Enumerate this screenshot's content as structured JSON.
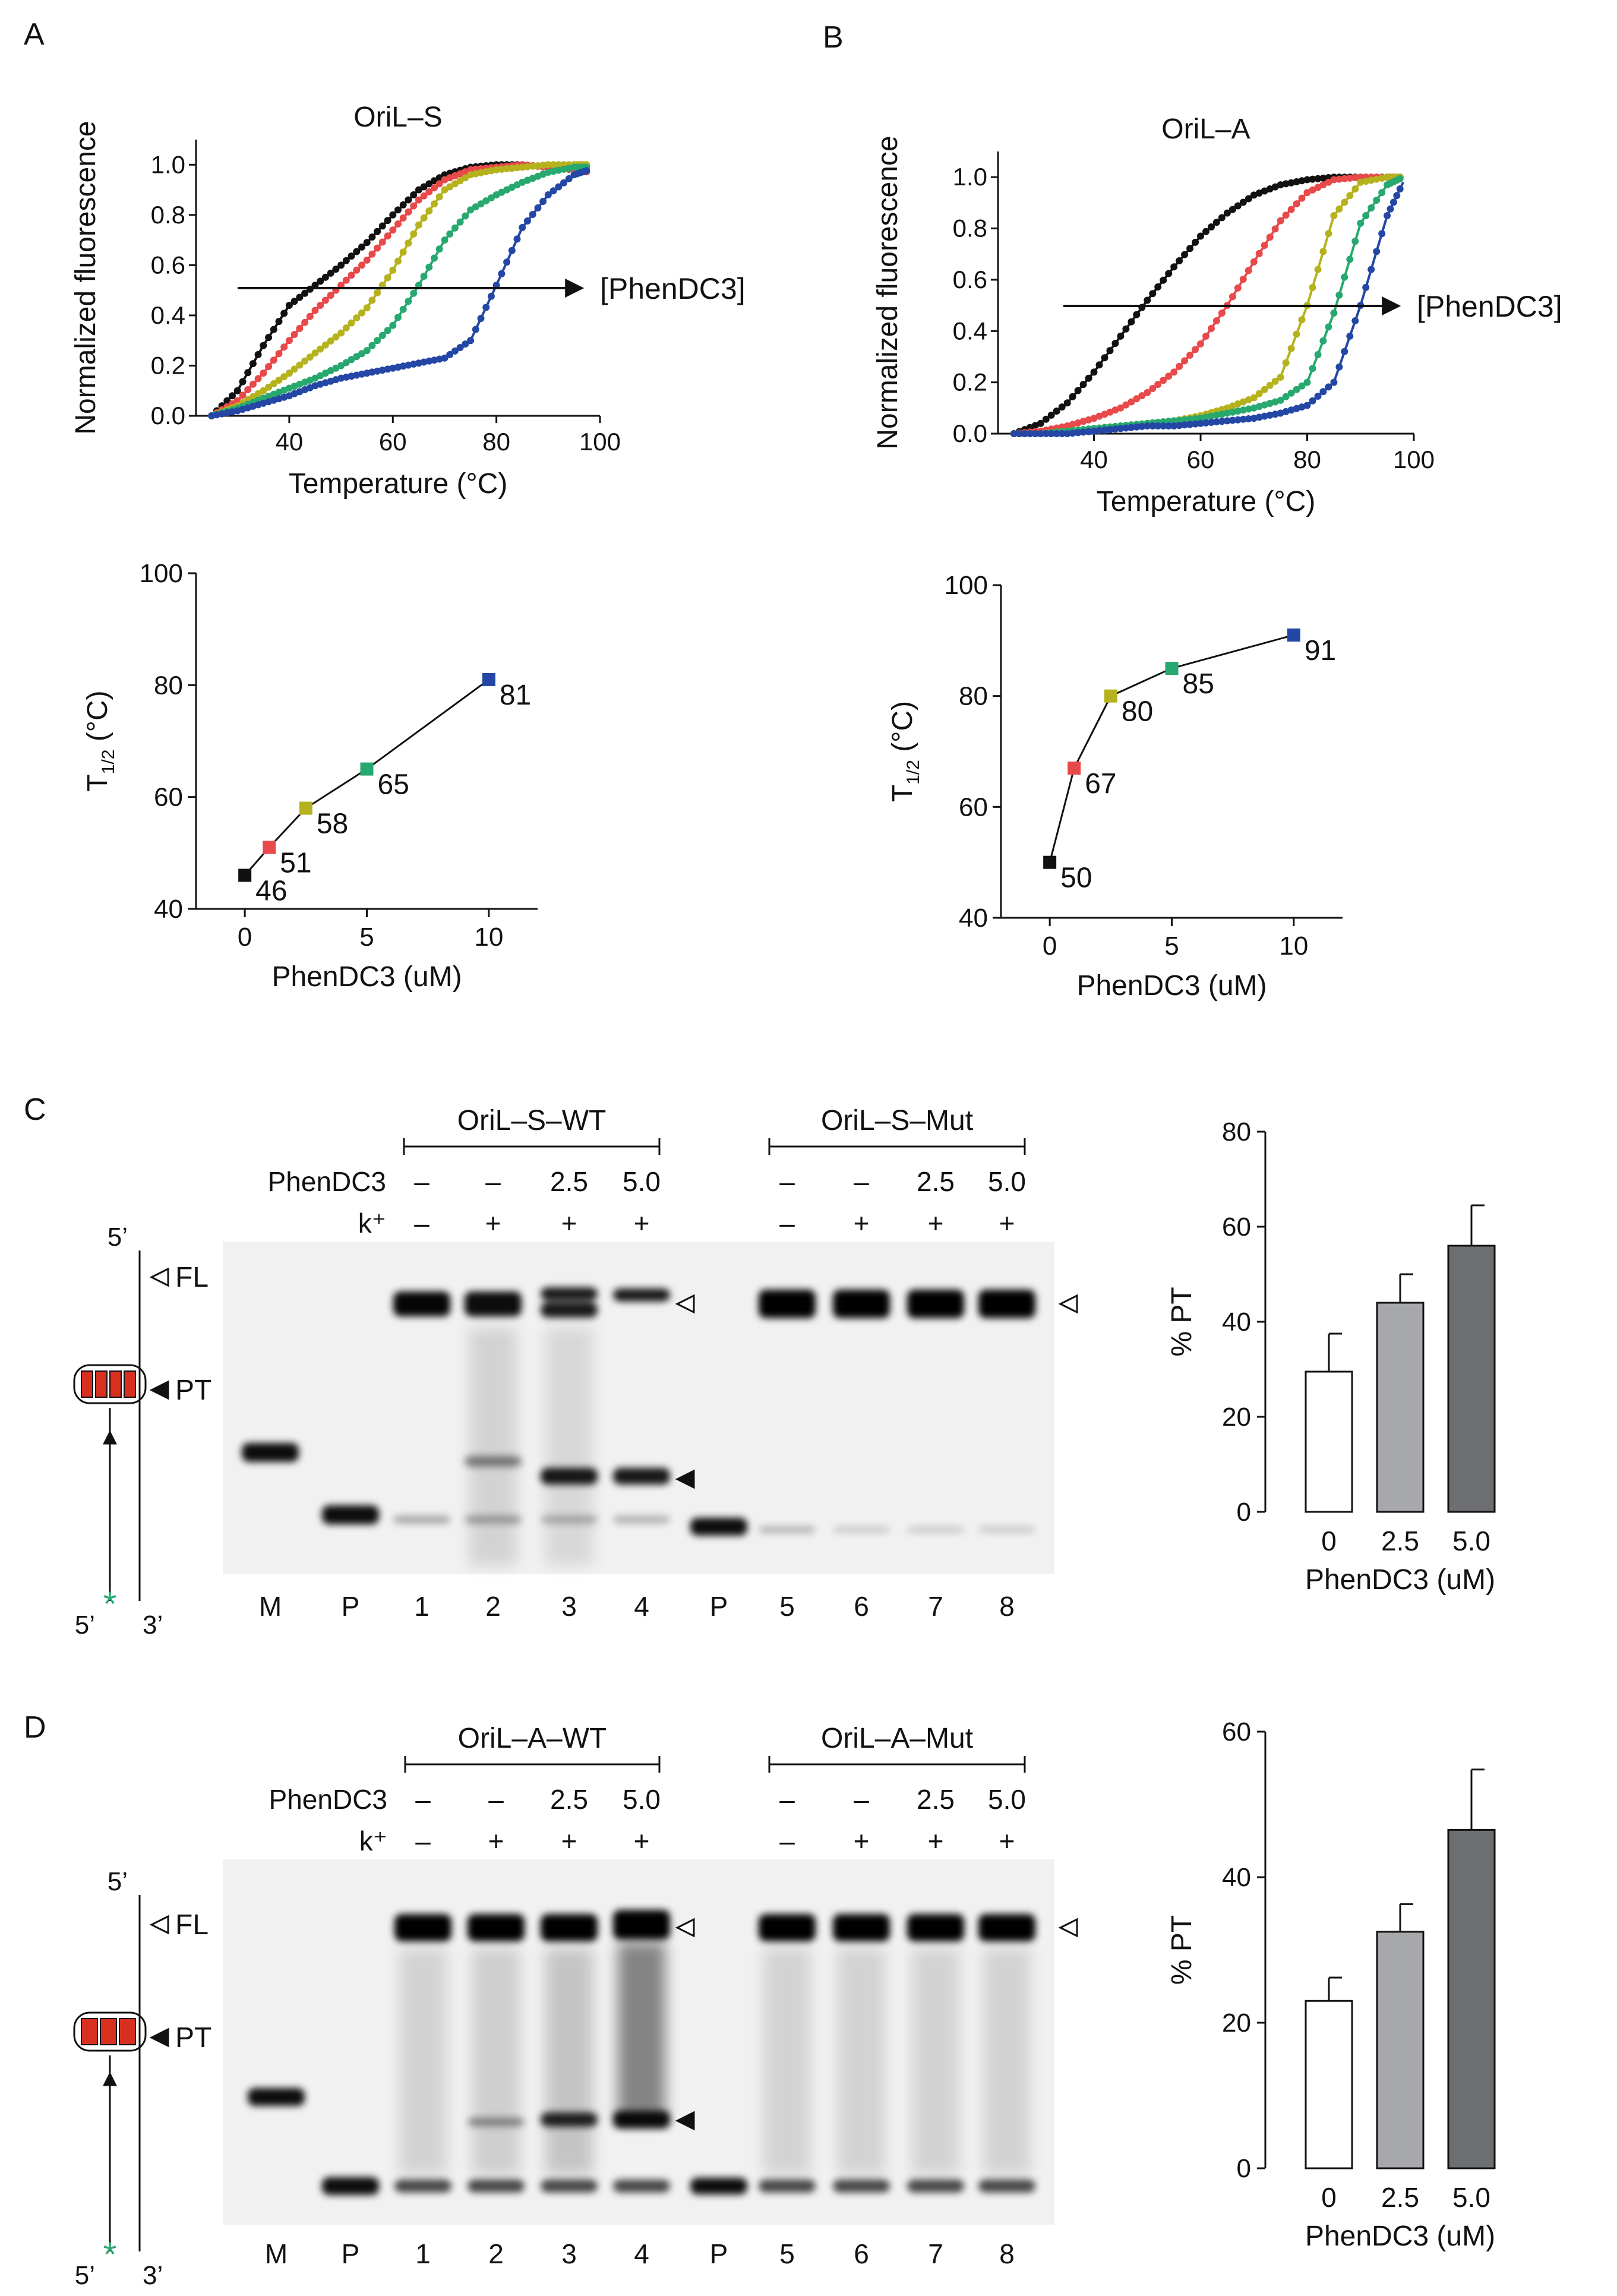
{
  "panel_labels": [
    "A",
    "B",
    "C",
    "D"
  ],
  "colors": {
    "black": "#111111",
    "red": "#e8494a",
    "yellow": "#b5b21e",
    "green": "#27a86f",
    "blue": "#2447a6",
    "bar_0": "#ffffff",
    "bar_2_5": "#a7a8ab",
    "bar_5_0": "#6d6e71"
  },
  "melt_arrow_label": "[PhenDC3]",
  "chart_data": [
    {
      "id": "A-melt",
      "type": "line",
      "title": "OriL–S",
      "xlabel": "Temperature (°C)",
      "ylabel": "Normalized fluorescence",
      "xlim": [
        22,
        100
      ],
      "ylim": [
        0,
        1.1
      ],
      "xticks": [
        40,
        60,
        80,
        100
      ],
      "yticks": [
        0.0,
        0.2,
        0.4,
        0.6,
        0.8,
        1.0
      ],
      "ytick_labels": [
        "0.0",
        "0.2",
        "0.4",
        "0.6",
        "0.8",
        "1.0"
      ],
      "series": [
        {
          "color": "black",
          "x": [
            25,
            30,
            35,
            40,
            45,
            50,
            55,
            60,
            65,
            70,
            75,
            80,
            85,
            90,
            95,
            98
          ],
          "y": [
            0.0,
            0.1,
            0.28,
            0.44,
            0.52,
            0.6,
            0.69,
            0.8,
            0.9,
            0.96,
            0.99,
            1.0,
            1.0,
            0.99,
            0.98,
            0.97
          ]
        },
        {
          "color": "red",
          "x": [
            25,
            30,
            35,
            40,
            45,
            50,
            55,
            60,
            65,
            70,
            75,
            80,
            85,
            90,
            95,
            98
          ],
          "y": [
            0.0,
            0.06,
            0.17,
            0.3,
            0.42,
            0.52,
            0.62,
            0.74,
            0.86,
            0.94,
            0.98,
            0.99,
            1.0,
            0.99,
            0.98,
            0.97
          ]
        },
        {
          "color": "yellow",
          "x": [
            25,
            30,
            35,
            40,
            45,
            50,
            55,
            60,
            65,
            70,
            75,
            80,
            85,
            90,
            95,
            98
          ],
          "y": [
            0.0,
            0.04,
            0.1,
            0.17,
            0.25,
            0.33,
            0.43,
            0.58,
            0.76,
            0.9,
            0.96,
            0.98,
            0.99,
            1.0,
            1.0,
            1.0
          ]
        },
        {
          "color": "green",
          "x": [
            25,
            30,
            35,
            40,
            45,
            50,
            55,
            60,
            65,
            70,
            75,
            80,
            85,
            90,
            95,
            98
          ],
          "y": [
            0.0,
            0.03,
            0.07,
            0.11,
            0.15,
            0.2,
            0.26,
            0.36,
            0.52,
            0.7,
            0.82,
            0.88,
            0.93,
            0.97,
            0.99,
            0.99
          ]
        },
        {
          "color": "blue",
          "x": [
            25,
            30,
            35,
            40,
            45,
            50,
            55,
            60,
            65,
            70,
            75,
            80,
            85,
            90,
            95,
            98
          ],
          "y": [
            0.0,
            0.02,
            0.05,
            0.08,
            0.12,
            0.15,
            0.17,
            0.19,
            0.21,
            0.23,
            0.3,
            0.52,
            0.75,
            0.88,
            0.96,
            0.98
          ]
        }
      ]
    },
    {
      "id": "B-melt",
      "type": "line",
      "title": "OriL–A",
      "xlabel": "Temperature (°C)",
      "ylabel": "Normalized fluorescence",
      "xlim": [
        22,
        100
      ],
      "ylim": [
        0,
        1.1
      ],
      "xticks": [
        40,
        60,
        80,
        100
      ],
      "yticks": [
        0.0,
        0.2,
        0.4,
        0.6,
        0.8,
        1.0
      ],
      "ytick_labels": [
        "0.0",
        "0.2",
        "0.4",
        "0.6",
        "0.8",
        "1.0"
      ],
      "series": [
        {
          "color": "black",
          "x": [
            25,
            30,
            35,
            40,
            45,
            50,
            55,
            60,
            65,
            70,
            75,
            80,
            85,
            90,
            95,
            98
          ],
          "y": [
            0.0,
            0.04,
            0.12,
            0.24,
            0.38,
            0.52,
            0.65,
            0.77,
            0.86,
            0.93,
            0.97,
            0.99,
            1.0,
            1.0,
            1.0,
            1.0
          ]
        },
        {
          "color": "red",
          "x": [
            25,
            30,
            35,
            40,
            45,
            50,
            55,
            60,
            65,
            70,
            75,
            80,
            85,
            90,
            95,
            98
          ],
          "y": [
            0.0,
            0.01,
            0.03,
            0.06,
            0.1,
            0.16,
            0.24,
            0.35,
            0.5,
            0.67,
            0.83,
            0.94,
            0.99,
            1.0,
            1.0,
            1.0
          ]
        },
        {
          "color": "yellow",
          "x": [
            25,
            30,
            35,
            40,
            45,
            50,
            55,
            60,
            65,
            70,
            75,
            80,
            85,
            90,
            95,
            98
          ],
          "y": [
            0.0,
            0.0,
            0.01,
            0.02,
            0.03,
            0.04,
            0.05,
            0.07,
            0.1,
            0.14,
            0.22,
            0.5,
            0.85,
            0.98,
            1.0,
            1.0
          ]
        },
        {
          "color": "green",
          "x": [
            25,
            30,
            35,
            40,
            45,
            50,
            55,
            60,
            65,
            70,
            75,
            80,
            85,
            90,
            95,
            98
          ],
          "y": [
            0.0,
            0.0,
            0.01,
            0.02,
            0.03,
            0.04,
            0.05,
            0.06,
            0.08,
            0.1,
            0.13,
            0.2,
            0.47,
            0.82,
            0.97,
            1.0
          ]
        },
        {
          "color": "blue",
          "x": [
            25,
            30,
            35,
            40,
            45,
            50,
            55,
            60,
            65,
            70,
            75,
            80,
            85,
            90,
            95,
            98
          ],
          "y": [
            0.0,
            0.0,
            0.0,
            0.01,
            0.02,
            0.03,
            0.03,
            0.04,
            0.05,
            0.06,
            0.08,
            0.11,
            0.2,
            0.5,
            0.85,
            0.98
          ]
        }
      ]
    },
    {
      "id": "A-thalf",
      "type": "line",
      "title": "",
      "xlabel": "PhenDC3 (uM)",
      "ylabel": "T",
      "ylabel_sub": "1/2",
      "ylabel_unit": " (°C)",
      "xlim": [
        -2,
        12
      ],
      "ylim": [
        40,
        100
      ],
      "xticks": [
        0,
        5,
        10
      ],
      "yticks": [
        40,
        60,
        80,
        100
      ],
      "x": [
        0,
        1,
        2.5,
        5,
        10
      ],
      "y": [
        46,
        51,
        58,
        65,
        81
      ],
      "point_colors": [
        "black",
        "red",
        "yellow",
        "green",
        "blue"
      ],
      "labels": [
        "46",
        "51",
        "58",
        "65",
        "81"
      ]
    },
    {
      "id": "B-thalf",
      "type": "line",
      "title": "",
      "xlabel": "PhenDC3 (uM)",
      "ylabel": "T",
      "ylabel_sub": "1/2",
      "ylabel_unit": " (°C)",
      "xlim": [
        -2,
        12
      ],
      "ylim": [
        40,
        100
      ],
      "xticks": [
        0,
        5,
        10
      ],
      "yticks": [
        40,
        60,
        80,
        100
      ],
      "x": [
        0,
        1,
        2.5,
        5,
        10
      ],
      "y": [
        50,
        67,
        80,
        85,
        91
      ],
      "point_colors": [
        "black",
        "red",
        "yellow",
        "green",
        "blue"
      ],
      "labels": [
        "50",
        "67",
        "80",
        "85",
        "91"
      ]
    },
    {
      "id": "C-bar",
      "type": "bar",
      "title": "",
      "xlabel": "PhenDC3 (uM)",
      "ylabel": "% PT",
      "categories": [
        "0",
        "2.5",
        "5.0"
      ],
      "values": [
        29.5,
        44,
        56
      ],
      "errors": [
        8,
        6,
        8.5
      ],
      "bar_colors": [
        "bar_0",
        "bar_2_5",
        "bar_5_0"
      ],
      "ylim": [
        0,
        80
      ],
      "yticks": [
        0,
        20,
        40,
        60,
        80
      ]
    },
    {
      "id": "D-bar",
      "type": "bar",
      "title": "",
      "xlabel": "PhenDC3 (uM)",
      "ylabel": "% PT",
      "categories": [
        "0",
        "2.5",
        "5.0"
      ],
      "values": [
        23,
        32.5,
        46.5
      ],
      "errors": [
        3.2,
        3.8,
        8.3
      ],
      "bar_colors": [
        "bar_0",
        "bar_2_5",
        "bar_5_0"
      ],
      "ylim": [
        0,
        60
      ],
      "yticks": [
        0,
        20,
        40,
        60
      ]
    }
  ],
  "gels": [
    {
      "id": "C",
      "group_labels": [
        "OriL–S–WT",
        "OriL–S–Mut"
      ],
      "condition_labels": {
        "phen": "PhenDC3",
        "k": "k⁺"
      },
      "phen_wt": [
        "–",
        "–",
        "2.5",
        "5.0"
      ],
      "k_wt": [
        "–",
        "+",
        "+",
        "+"
      ],
      "phen_mut": [
        "–",
        "–",
        "2.5",
        "5.0"
      ],
      "k_mut": [
        "–",
        "+",
        "+",
        "+"
      ],
      "lane_labels": [
        "M",
        "P",
        "1",
        "2",
        "3",
        "4",
        "P",
        "5",
        "6",
        "7",
        "8"
      ],
      "schematic_labels": {
        "top": "5’",
        "fl": "FL",
        "pt": "PT",
        "bottom_left": "5’",
        "bottom_right": "3’",
        "star": "*"
      }
    },
    {
      "id": "D",
      "group_labels": [
        "OriL–A–WT",
        "OriL–A–Mut"
      ],
      "condition_labels": {
        "phen": "PhenDC3",
        "k": "k⁺"
      },
      "phen_wt": [
        "–",
        "–",
        "2.5",
        "5.0"
      ],
      "k_wt": [
        "–",
        "+",
        "+",
        "+"
      ],
      "phen_mut": [
        "–",
        "–",
        "2.5",
        "5.0"
      ],
      "k_mut": [
        "–",
        "+",
        "+",
        "+"
      ],
      "lane_labels": [
        "M",
        "P",
        "1",
        "2",
        "3",
        "4",
        "P",
        "5",
        "6",
        "7",
        "8"
      ],
      "schematic_labels": {
        "top": "5’",
        "fl": "FL",
        "pt": "PT",
        "bottom_left": "5’",
        "bottom_right": "3’",
        "star": "*"
      }
    }
  ]
}
